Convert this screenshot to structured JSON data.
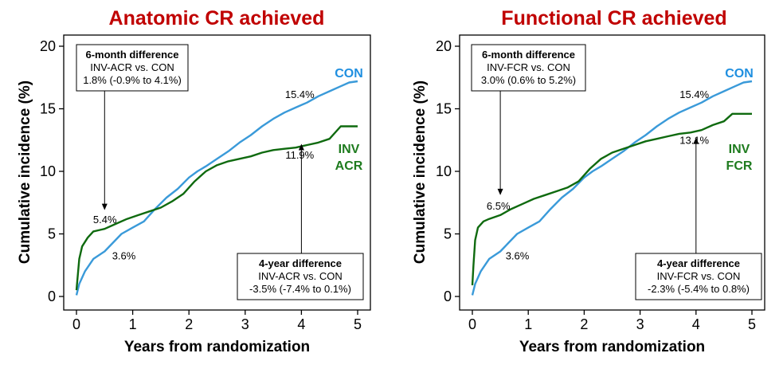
{
  "chart_data": [
    {
      "type": "line",
      "title": "Anatomic CR achieved",
      "xlabel": "Years from randomization",
      "ylabel": "Cumulative incidence (%)",
      "xlim": [
        0,
        5
      ],
      "ylim": [
        0,
        20
      ],
      "xticks": [
        0,
        1,
        2,
        3,
        4,
        5
      ],
      "yticks": [
        0,
        5,
        10,
        15,
        20
      ],
      "grid": false,
      "title_color": "#c00000",
      "series": [
        {
          "name": "CON",
          "color": "#3a9ad9",
          "label_color": "#1f8fe0",
          "x": [
            0,
            0.05,
            0.15,
            0.3,
            0.5,
            0.65,
            0.8,
            1.0,
            1.2,
            1.4,
            1.6,
            1.8,
            2.0,
            2.15,
            2.3,
            2.5,
            2.7,
            2.9,
            3.1,
            3.3,
            3.5,
            3.7,
            3.9,
            4.1,
            4.3,
            4.5,
            4.7,
            4.85,
            5.0
          ],
          "y": [
            0.1,
            1.0,
            2.0,
            3.0,
            3.6,
            4.3,
            5.0,
            5.5,
            6.0,
            7.0,
            7.9,
            8.6,
            9.5,
            10.0,
            10.4,
            11.0,
            11.6,
            12.3,
            12.9,
            13.6,
            14.2,
            14.7,
            15.1,
            15.5,
            16.0,
            16.4,
            16.8,
            17.1,
            17.2
          ]
        },
        {
          "name": "INV",
          "name2": "ACR",
          "color": "#0f6a0f",
          "label_color": "#1e7b1e",
          "x": [
            0,
            0.02,
            0.05,
            0.1,
            0.2,
            0.3,
            0.5,
            0.7,
            0.9,
            1.1,
            1.3,
            1.5,
            1.7,
            1.9,
            2.1,
            2.3,
            2.5,
            2.7,
            2.9,
            3.1,
            3.3,
            3.5,
            3.7,
            3.9,
            4.1,
            4.3,
            4.5,
            4.7,
            5.0
          ],
          "y": [
            0.5,
            1.5,
            3.0,
            4.0,
            4.7,
            5.2,
            5.4,
            5.8,
            6.2,
            6.5,
            6.8,
            7.1,
            7.6,
            8.2,
            9.2,
            10.0,
            10.5,
            10.8,
            11.0,
            11.2,
            11.5,
            11.7,
            11.8,
            11.9,
            12.1,
            12.3,
            12.6,
            13.6,
            13.6
          ]
        }
      ],
      "point_labels": [
        {
          "x": 0.52,
          "y": 5.4,
          "text": "5.4%"
        },
        {
          "x": 0.52,
          "y": 3.6,
          "text": "3.6%"
        },
        {
          "x": 3.97,
          "y": 15.4,
          "text": "15.4%"
        },
        {
          "x": 3.97,
          "y": 11.9,
          "text": "11.9%"
        }
      ],
      "annotations": [
        {
          "heading": "6-month difference",
          "line1": "INV-ACR vs. CON",
          "line2": "1.8% (-0.9% to 4.1%)",
          "arrow_x": 0.5,
          "arrow_to_y": 6.9
        },
        {
          "heading": "4-year difference",
          "line1": "INV-ACR vs. CON",
          "line2": "-3.5% (-7.4% to 0.1%)",
          "arrow_x": 4.0,
          "arrow_to_y": 12.2
        }
      ]
    },
    {
      "type": "line",
      "title": "Functional CR achieved",
      "xlabel": "Years from randomization",
      "ylabel": "Cumulative incidence (%)",
      "xlim": [
        0,
        5
      ],
      "ylim": [
        0,
        20
      ],
      "xticks": [
        0,
        1,
        2,
        3,
        4,
        5
      ],
      "yticks": [
        0,
        5,
        10,
        15,
        20
      ],
      "grid": false,
      "title_color": "#c00000",
      "series": [
        {
          "name": "CON",
          "color": "#3a9ad9",
          "label_color": "#1f8fe0",
          "x": [
            0,
            0.05,
            0.15,
            0.3,
            0.5,
            0.65,
            0.8,
            1.0,
            1.2,
            1.4,
            1.6,
            1.8,
            2.0,
            2.15,
            2.3,
            2.5,
            2.7,
            2.9,
            3.1,
            3.3,
            3.5,
            3.7,
            3.9,
            4.1,
            4.3,
            4.5,
            4.7,
            4.85,
            5.0
          ],
          "y": [
            0.1,
            1.0,
            2.0,
            3.0,
            3.6,
            4.3,
            5.0,
            5.5,
            6.0,
            7.0,
            7.9,
            8.6,
            9.5,
            10.0,
            10.4,
            11.0,
            11.6,
            12.3,
            12.9,
            13.6,
            14.2,
            14.7,
            15.1,
            15.5,
            16.0,
            16.4,
            16.8,
            17.1,
            17.2
          ]
        },
        {
          "name": "INV",
          "name2": "FCR",
          "color": "#0f6a0f",
          "label_color": "#1e7b1e",
          "x": [
            0,
            0.02,
            0.05,
            0.1,
            0.2,
            0.3,
            0.5,
            0.7,
            0.9,
            1.1,
            1.3,
            1.5,
            1.7,
            1.9,
            2.1,
            2.3,
            2.5,
            2.7,
            2.9,
            3.1,
            3.3,
            3.5,
            3.7,
            3.9,
            4.1,
            4.3,
            4.5,
            4.65,
            5.0
          ],
          "y": [
            0.9,
            2.5,
            4.5,
            5.5,
            6.0,
            6.2,
            6.5,
            7.0,
            7.4,
            7.8,
            8.1,
            8.4,
            8.7,
            9.2,
            10.2,
            11.0,
            11.5,
            11.8,
            12.1,
            12.4,
            12.6,
            12.8,
            13.0,
            13.1,
            13.3,
            13.7,
            14.0,
            14.6,
            14.6
          ]
        }
      ],
      "point_labels": [
        {
          "x": 0.48,
          "y": 6.5,
          "text": "6.5%"
        },
        {
          "x": 0.48,
          "y": 3.6,
          "text": "3.6%"
        },
        {
          "x": 3.97,
          "y": 15.4,
          "text": "15.4%"
        },
        {
          "x": 3.97,
          "y": 13.1,
          "text": "13.1%"
        }
      ],
      "annotations": [
        {
          "heading": "6-month difference",
          "line1": "INV-FCR vs. CON",
          "line2": "3.0% (0.6% to 5.2%)",
          "arrow_x": 0.5,
          "arrow_to_y": 8.1
        },
        {
          "heading": "4-year difference",
          "line1": "INV-FCR vs. CON",
          "line2": "-2.3% (-5.4% to 0.8%)",
          "arrow_x": 4.0,
          "arrow_to_y": 12.7
        }
      ]
    }
  ]
}
